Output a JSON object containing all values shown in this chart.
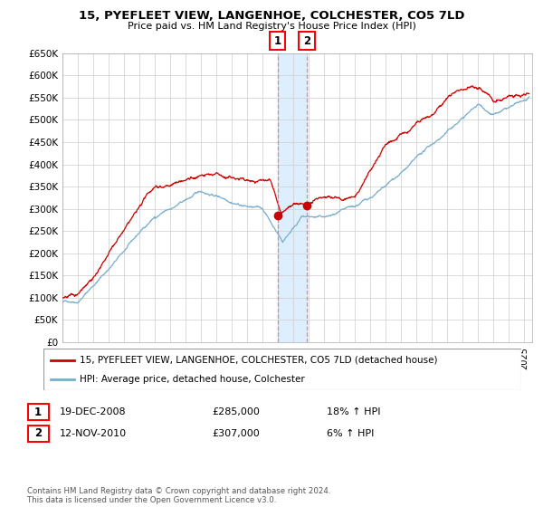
{
  "title": "15, PYEFLEET VIEW, LANGENHOE, COLCHESTER, CO5 7LD",
  "subtitle": "Price paid vs. HM Land Registry's House Price Index (HPI)",
  "ylabel_ticks": [
    "£0",
    "£50K",
    "£100K",
    "£150K",
    "£200K",
    "£250K",
    "£300K",
    "£350K",
    "£400K",
    "£450K",
    "£500K",
    "£550K",
    "£600K",
    "£650K"
  ],
  "ytick_values": [
    0,
    50000,
    100000,
    150000,
    200000,
    250000,
    300000,
    350000,
    400000,
    450000,
    500000,
    550000,
    600000,
    650000
  ],
  "legend_line1": "15, PYEFLEET VIEW, LANGENHOE, COLCHESTER, CO5 7LD (detached house)",
  "legend_line2": "HPI: Average price, detached house, Colchester",
  "sale1_date": "19-DEC-2008",
  "sale1_price": "£285,000",
  "sale1_hpi": "18% ↑ HPI",
  "sale2_date": "12-NOV-2010",
  "sale2_price": "£307,000",
  "sale2_hpi": "6% ↑ HPI",
  "sale1_x": 2008.96,
  "sale1_y": 285000,
  "sale2_x": 2010.87,
  "sale2_y": 307000,
  "vline1_x": 2008.96,
  "vline2_x": 2010.87,
  "shade_x1": 2008.96,
  "shade_x2": 2010.87,
  "red_line_color": "#cc0000",
  "blue_line_color": "#7aadcc",
  "shade_color": "#ddeeff",
  "vline_color": "#dd8888",
  "footer": "Contains HM Land Registry data © Crown copyright and database right 2024.\nThis data is licensed under the Open Government Licence v3.0.",
  "xlim": [
    1995.0,
    2025.5
  ],
  "ylim": [
    0,
    650000
  ]
}
